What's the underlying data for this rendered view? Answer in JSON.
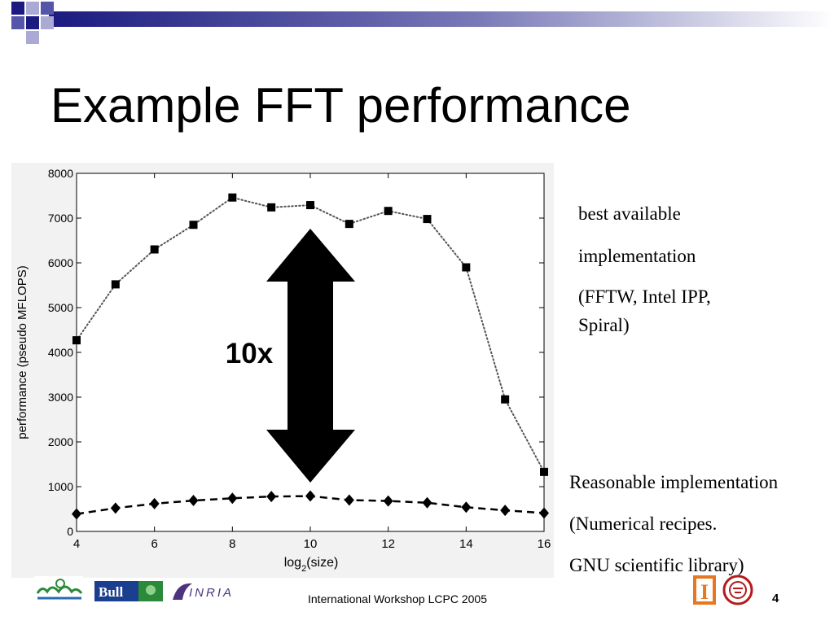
{
  "slide": {
    "title": "Example FFT performance",
    "footer": "International Workshop LCPC 2005",
    "page_number": "4"
  },
  "notes": {
    "best": [
      "best available",
      "implementation",
      "(FFTW, Intel IPP,",
      "Spiral)"
    ],
    "reasonable": [
      "Reasonable implementation",
      "(Numerical recipes.",
      "GNU scientific library)"
    ]
  },
  "logos": {
    "bull": "Bull",
    "inria": "INRIA",
    "illinois": "I"
  },
  "chart_data": {
    "type": "line",
    "xlabel_main": "log",
    "xlabel_sub": "2",
    "xlabel_rest": "(size)",
    "ylabel": "performance (pseudo MFLOPS)",
    "x": [
      4,
      5,
      6,
      7,
      8,
      9,
      10,
      11,
      12,
      13,
      14,
      15,
      16
    ],
    "xlim": [
      4,
      16
    ],
    "ylim": [
      0,
      8000
    ],
    "x_ticks": [
      "4",
      "6",
      "8",
      "10",
      "12",
      "14",
      "16"
    ],
    "y_ticks": [
      "0",
      "1000",
      "2000",
      "3000",
      "4000",
      "5000",
      "6000",
      "7000",
      "8000"
    ],
    "series": [
      {
        "marker": "square",
        "style": "dotted",
        "values": [
          4270,
          5520,
          6300,
          6850,
          7460,
          7240,
          7290,
          6870,
          7160,
          6980,
          5900,
          2950,
          1330
        ]
      },
      {
        "marker": "diamond",
        "style": "dashed",
        "values": [
          390,
          520,
          620,
          690,
          740,
          780,
          790,
          700,
          680,
          640,
          540,
          470,
          410
        ]
      }
    ],
    "annotation": "10x",
    "grid": false
  },
  "colors": {
    "bar_dark": "#1a1a80",
    "bar_mid": "#5555aa",
    "bar_light": "#aaaad4",
    "chart_bg": "#f2f2f2",
    "illinois_orange": "#e87722",
    "cornell_red": "#b31b1b",
    "bull_blue": "#1b3f8f",
    "inria_purple": "#4b3380"
  }
}
